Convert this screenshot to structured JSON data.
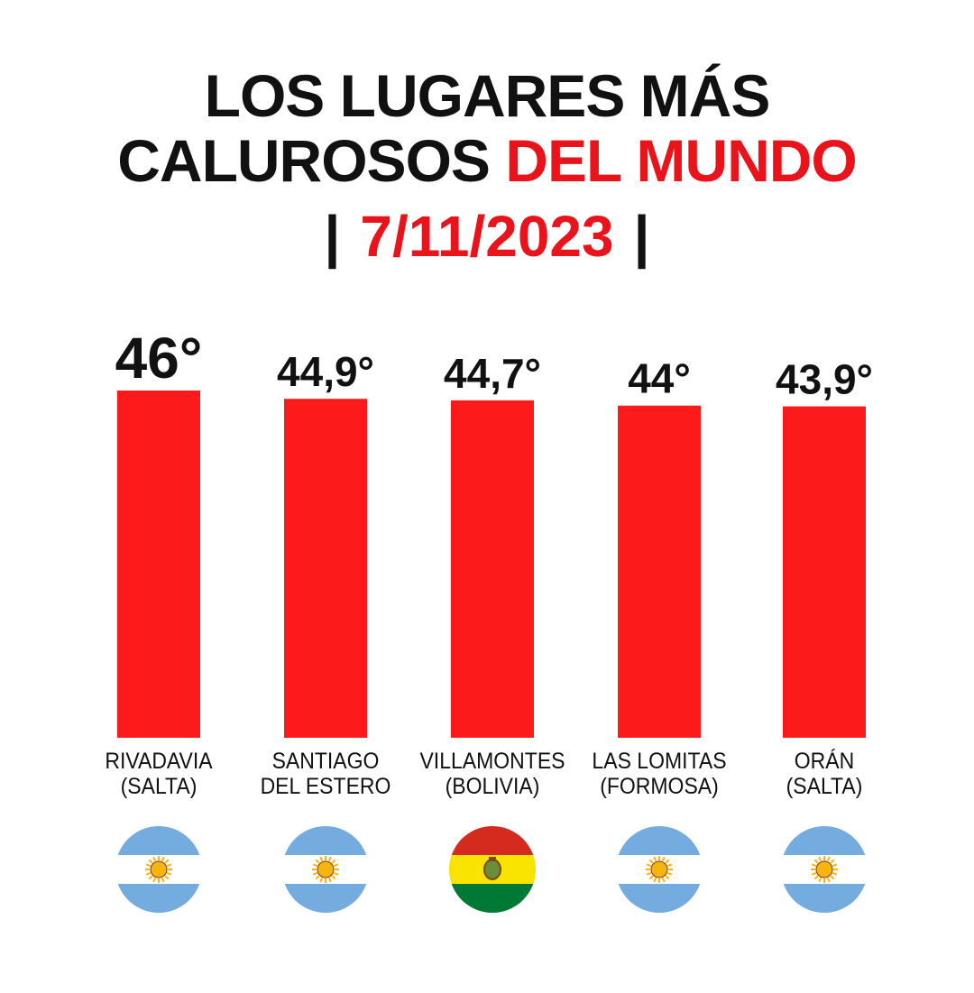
{
  "title": {
    "line1": "LOS LUGARES MÁS",
    "line2_black": "CALUROSOS",
    "line2_red": "DEL MUNDO",
    "date_left_bar": "|",
    "date": "7/11/2023",
    "date_right_bar": "|"
  },
  "colors": {
    "accent": "#e8131b",
    "bar": "#fd1a1a",
    "text": "#111111"
  },
  "chart_data": {
    "type": "bar",
    "title": "LOS LUGARES MÁS CALUROSOS DEL MUNDO | 7/11/2023 |",
    "categories": [
      "RIVADAVIA (SALTA)",
      "SANTIAGO DEL ESTERO",
      "VILLAMONTES (BOLIVIA)",
      "LAS LOMITAS (FORMOSA)",
      "ORÁN (SALTA)"
    ],
    "values": [
      46,
      44.9,
      44.7,
      44,
      43.9
    ],
    "data_labels": [
      "46°",
      "44,9°",
      "44,7°",
      "44°",
      "43,9°"
    ],
    "ylim": [
      0,
      46
    ],
    "grid": false,
    "legend": "none"
  },
  "labels": [
    {
      "line1": "RIVADAVIA",
      "line2": "(SALTA)",
      "flag": "argentina-flag-icon"
    },
    {
      "line1": "SANTIAGO",
      "line2": "DEL ESTERO",
      "flag": "argentina-flag-icon"
    },
    {
      "line1": "VILLAMONTES",
      "line2": "(BOLIVIA)",
      "flag": "bolivia-flag-icon"
    },
    {
      "line1": "LAS LOMITAS",
      "line2": "(FORMOSA)",
      "flag": "argentina-flag-icon"
    },
    {
      "line1": "ORÁN",
      "line2": "(SALTA)",
      "flag": "argentina-flag-icon"
    }
  ]
}
